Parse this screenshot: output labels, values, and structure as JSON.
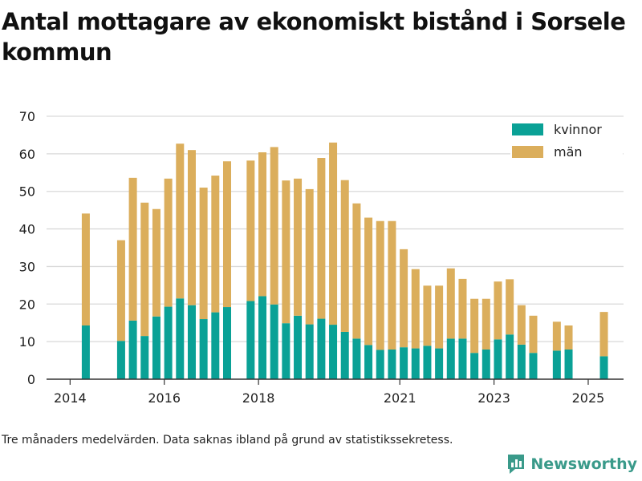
{
  "header": {
    "title": "Antal mottagare av ekonomiskt bistånd i Sorsele kommun"
  },
  "footnote": "Tre månaders medelvärden. Data saknas ibland på grund av statistikssekretess.",
  "brand": {
    "name": "Newsworthy",
    "icon": "newsworthy-logo-icon",
    "color": "#3a9a8a"
  },
  "colors": {
    "kvinnor": "#0aa196",
    "man": "#dbae5c",
    "grid": "#d9d9d9",
    "axis": "#333333"
  },
  "chart_data": {
    "type": "bar",
    "stacked": true,
    "title": "Antal mottagare av ekonomiskt bistånd i Sorsele kommun",
    "xlabel": "",
    "ylabel": "",
    "ylim": [
      0,
      70
    ],
    "yticks": [
      0,
      10,
      20,
      30,
      40,
      50,
      60,
      70
    ],
    "xticks": [
      "2014",
      "2016",
      "2018",
      "2021",
      "2023",
      "2025"
    ],
    "grid": true,
    "legend_position": "top-right",
    "x_dates": [
      "2014-04",
      "2014-05",
      "2014-06",
      "2014-07",
      "2014-08",
      "2014-09",
      "2014-10",
      "2014-11",
      "2014-12",
      "2015-01",
      "2015-02",
      "2015-03",
      "2015-04",
      "2015-05",
      "2015-06",
      "2015-07",
      "2015-08",
      "2015-09",
      "2015-10",
      "2015-11",
      "2015-12",
      "2016-01",
      "2016-02",
      "2016-03",
      "2016-04",
      "2016-05",
      "2016-06",
      "2016-07",
      "2016-08",
      "2016-09",
      "2016-10",
      "2016-11",
      "2016-12",
      "2017-01",
      "2017-02",
      "2017-03",
      "2017-04",
      "2017-05",
      "2017-06",
      "2017-07",
      "2017-08",
      "2017-09",
      "2017-10",
      "2017-11",
      "2017-12",
      "2018-01",
      "2018-02",
      "2018-03",
      "2018-04",
      "2018-05",
      "2018-06",
      "2018-07",
      "2018-08",
      "2018-09",
      "2018-10",
      "2018-11",
      "2018-12",
      "2019-01",
      "2019-02",
      "2019-03",
      "2019-04",
      "2019-05",
      "2019-06",
      "2019-07",
      "2019-08",
      "2019-09",
      "2019-10",
      "2019-11",
      "2019-12",
      "2020-01",
      "2020-02",
      "2020-03",
      "2020-04",
      "2020-05",
      "2020-06",
      "2020-07",
      "2020-08",
      "2020-09",
      "2020-10",
      "2020-11",
      "2020-12",
      "2021-01",
      "2021-02",
      "2021-03",
      "2021-04",
      "2021-05",
      "2021-06",
      "2021-07",
      "2021-08",
      "2021-09",
      "2021-10",
      "2021-11",
      "2021-12",
      "2022-01",
      "2022-02",
      "2022-03",
      "2022-04",
      "2022-05",
      "2022-06",
      "2022-07",
      "2022-08",
      "2022-09",
      "2022-10",
      "2022-11",
      "2022-12",
      "2023-01",
      "2023-02",
      "2023-03",
      "2023-04",
      "2023-05",
      "2023-06",
      "2023-07",
      "2023-08",
      "2023-09",
      "2023-10",
      "2023-11",
      "2023-12",
      "2024-01",
      "2024-02",
      "2024-03",
      "2024-04",
      "2024-05",
      "2024-06",
      "2024-07",
      "2024-08",
      "2024-09",
      "2024-10",
      "2024-11",
      "2024-12",
      "2025-01",
      "2025-02",
      "2025-03",
      "2025-04",
      "2025-05",
      "2025-06",
      "2025-07"
    ],
    "x_date_range": [
      "2013-07",
      "2025-10"
    ],
    "series": [
      {
        "name": "kvinnor",
        "color": "#0aa196",
        "values": [
          14.3,
          10.2,
          15.6,
          11.5,
          16.7,
          19.3,
          21.5,
          19.7,
          16.0,
          17.8,
          19.2,
          20.8,
          22.1,
          19.9,
          14.9,
          16.9,
          14.6,
          16.1,
          14.5,
          12.6,
          10.8,
          9.1,
          7.8,
          7.9,
          8.5,
          8.2,
          8.9,
          8.2,
          10.8,
          10.8,
          7.0,
          7.9,
          10.6,
          11.9,
          9.2,
          7.0,
          7.6,
          7.9,
          6.1
        ]
      },
      {
        "name": "män",
        "color": "#dbae5c",
        "values": [
          29.8,
          26.8,
          38.0,
          35.5,
          28.6,
          34.1,
          41.2,
          41.3,
          35.0,
          36.4,
          38.8,
          37.4,
          38.3,
          41.9,
          38.0,
          36.5,
          36.0,
          42.8,
          48.5,
          40.4,
          36.0,
          33.9,
          34.3,
          34.2,
          26.1,
          21.1,
          16.0,
          16.7,
          18.7,
          15.9,
          14.4,
          13.5,
          15.4,
          14.7,
          10.5,
          9.9,
          7.7,
          6.4,
          11.8
        ]
      }
    ],
    "bars": [
      {
        "date": "2014-05",
        "kvinnor": 14.3,
        "man": 29.8
      },
      {
        "date": "2015-02",
        "kvinnor": 10.2,
        "man": 26.8
      },
      {
        "date": "2015-05",
        "kvinnor": 15.6,
        "man": 38.0
      },
      {
        "date": "2015-08",
        "kvinnor": 11.5,
        "man": 35.5
      },
      {
        "date": "2015-11",
        "kvinnor": 16.7,
        "man": 28.6
      },
      {
        "date": "2016-02",
        "kvinnor": 19.3,
        "man": 34.1
      },
      {
        "date": "2016-05",
        "kvinnor": 21.5,
        "man": 41.2
      },
      {
        "date": "2016-08",
        "kvinnor": 19.7,
        "man": 41.3
      },
      {
        "date": "2016-11",
        "kvinnor": 16.0,
        "man": 35.0
      },
      {
        "date": "2017-02",
        "kvinnor": 17.8,
        "man": 36.4
      },
      {
        "date": "2017-05",
        "kvinnor": 19.2,
        "man": 38.8
      },
      {
        "date": "2017-11",
        "kvinnor": 20.8,
        "man": 37.4
      },
      {
        "date": "2018-02",
        "kvinnor": 22.1,
        "man": 38.3
      },
      {
        "date": "2018-05",
        "kvinnor": 19.9,
        "man": 41.9
      },
      {
        "date": "2018-08",
        "kvinnor": 14.9,
        "man": 38.0
      },
      {
        "date": "2018-11",
        "kvinnor": 16.9,
        "man": 36.5
      },
      {
        "date": "2019-02",
        "kvinnor": 14.6,
        "man": 36.0
      },
      {
        "date": "2019-05",
        "kvinnor": 16.1,
        "man": 42.8
      },
      {
        "date": "2019-08",
        "kvinnor": 14.5,
        "man": 48.5
      },
      {
        "date": "2019-11",
        "kvinnor": 12.6,
        "man": 40.4
      },
      {
        "date": "2020-02",
        "kvinnor": 10.8,
        "man": 36.0
      },
      {
        "date": "2020-05",
        "kvinnor": 9.1,
        "man": 33.9
      },
      {
        "date": "2020-08",
        "kvinnor": 7.8,
        "man": 34.3
      },
      {
        "date": "2020-11",
        "kvinnor": 7.9,
        "man": 34.2
      },
      {
        "date": "2021-02",
        "kvinnor": 8.5,
        "man": 26.1
      },
      {
        "date": "2021-05",
        "kvinnor": 8.2,
        "man": 21.1
      },
      {
        "date": "2021-08",
        "kvinnor": 8.9,
        "man": 16.0
      },
      {
        "date": "2021-11",
        "kvinnor": 8.2,
        "man": 16.7
      },
      {
        "date": "2022-02",
        "kvinnor": 10.8,
        "man": 18.7
      },
      {
        "date": "2022-05",
        "kvinnor": 10.8,
        "man": 15.9
      },
      {
        "date": "2022-08",
        "kvinnor": 7.0,
        "man": 14.4
      },
      {
        "date": "2022-11",
        "kvinnor": 7.9,
        "man": 13.5
      },
      {
        "date": "2023-02",
        "kvinnor": 10.6,
        "man": 15.4
      },
      {
        "date": "2023-05",
        "kvinnor": 11.9,
        "man": 14.7
      },
      {
        "date": "2023-08",
        "kvinnor": 9.2,
        "man": 10.5
      },
      {
        "date": "2023-11",
        "kvinnor": 7.0,
        "man": 9.9
      },
      {
        "date": "2024-05",
        "kvinnor": 7.6,
        "man": 7.7
      },
      {
        "date": "2024-08",
        "kvinnor": 7.9,
        "man": 6.4
      },
      {
        "date": "2025-05",
        "kvinnor": 6.1,
        "man": 11.8
      }
    ]
  }
}
